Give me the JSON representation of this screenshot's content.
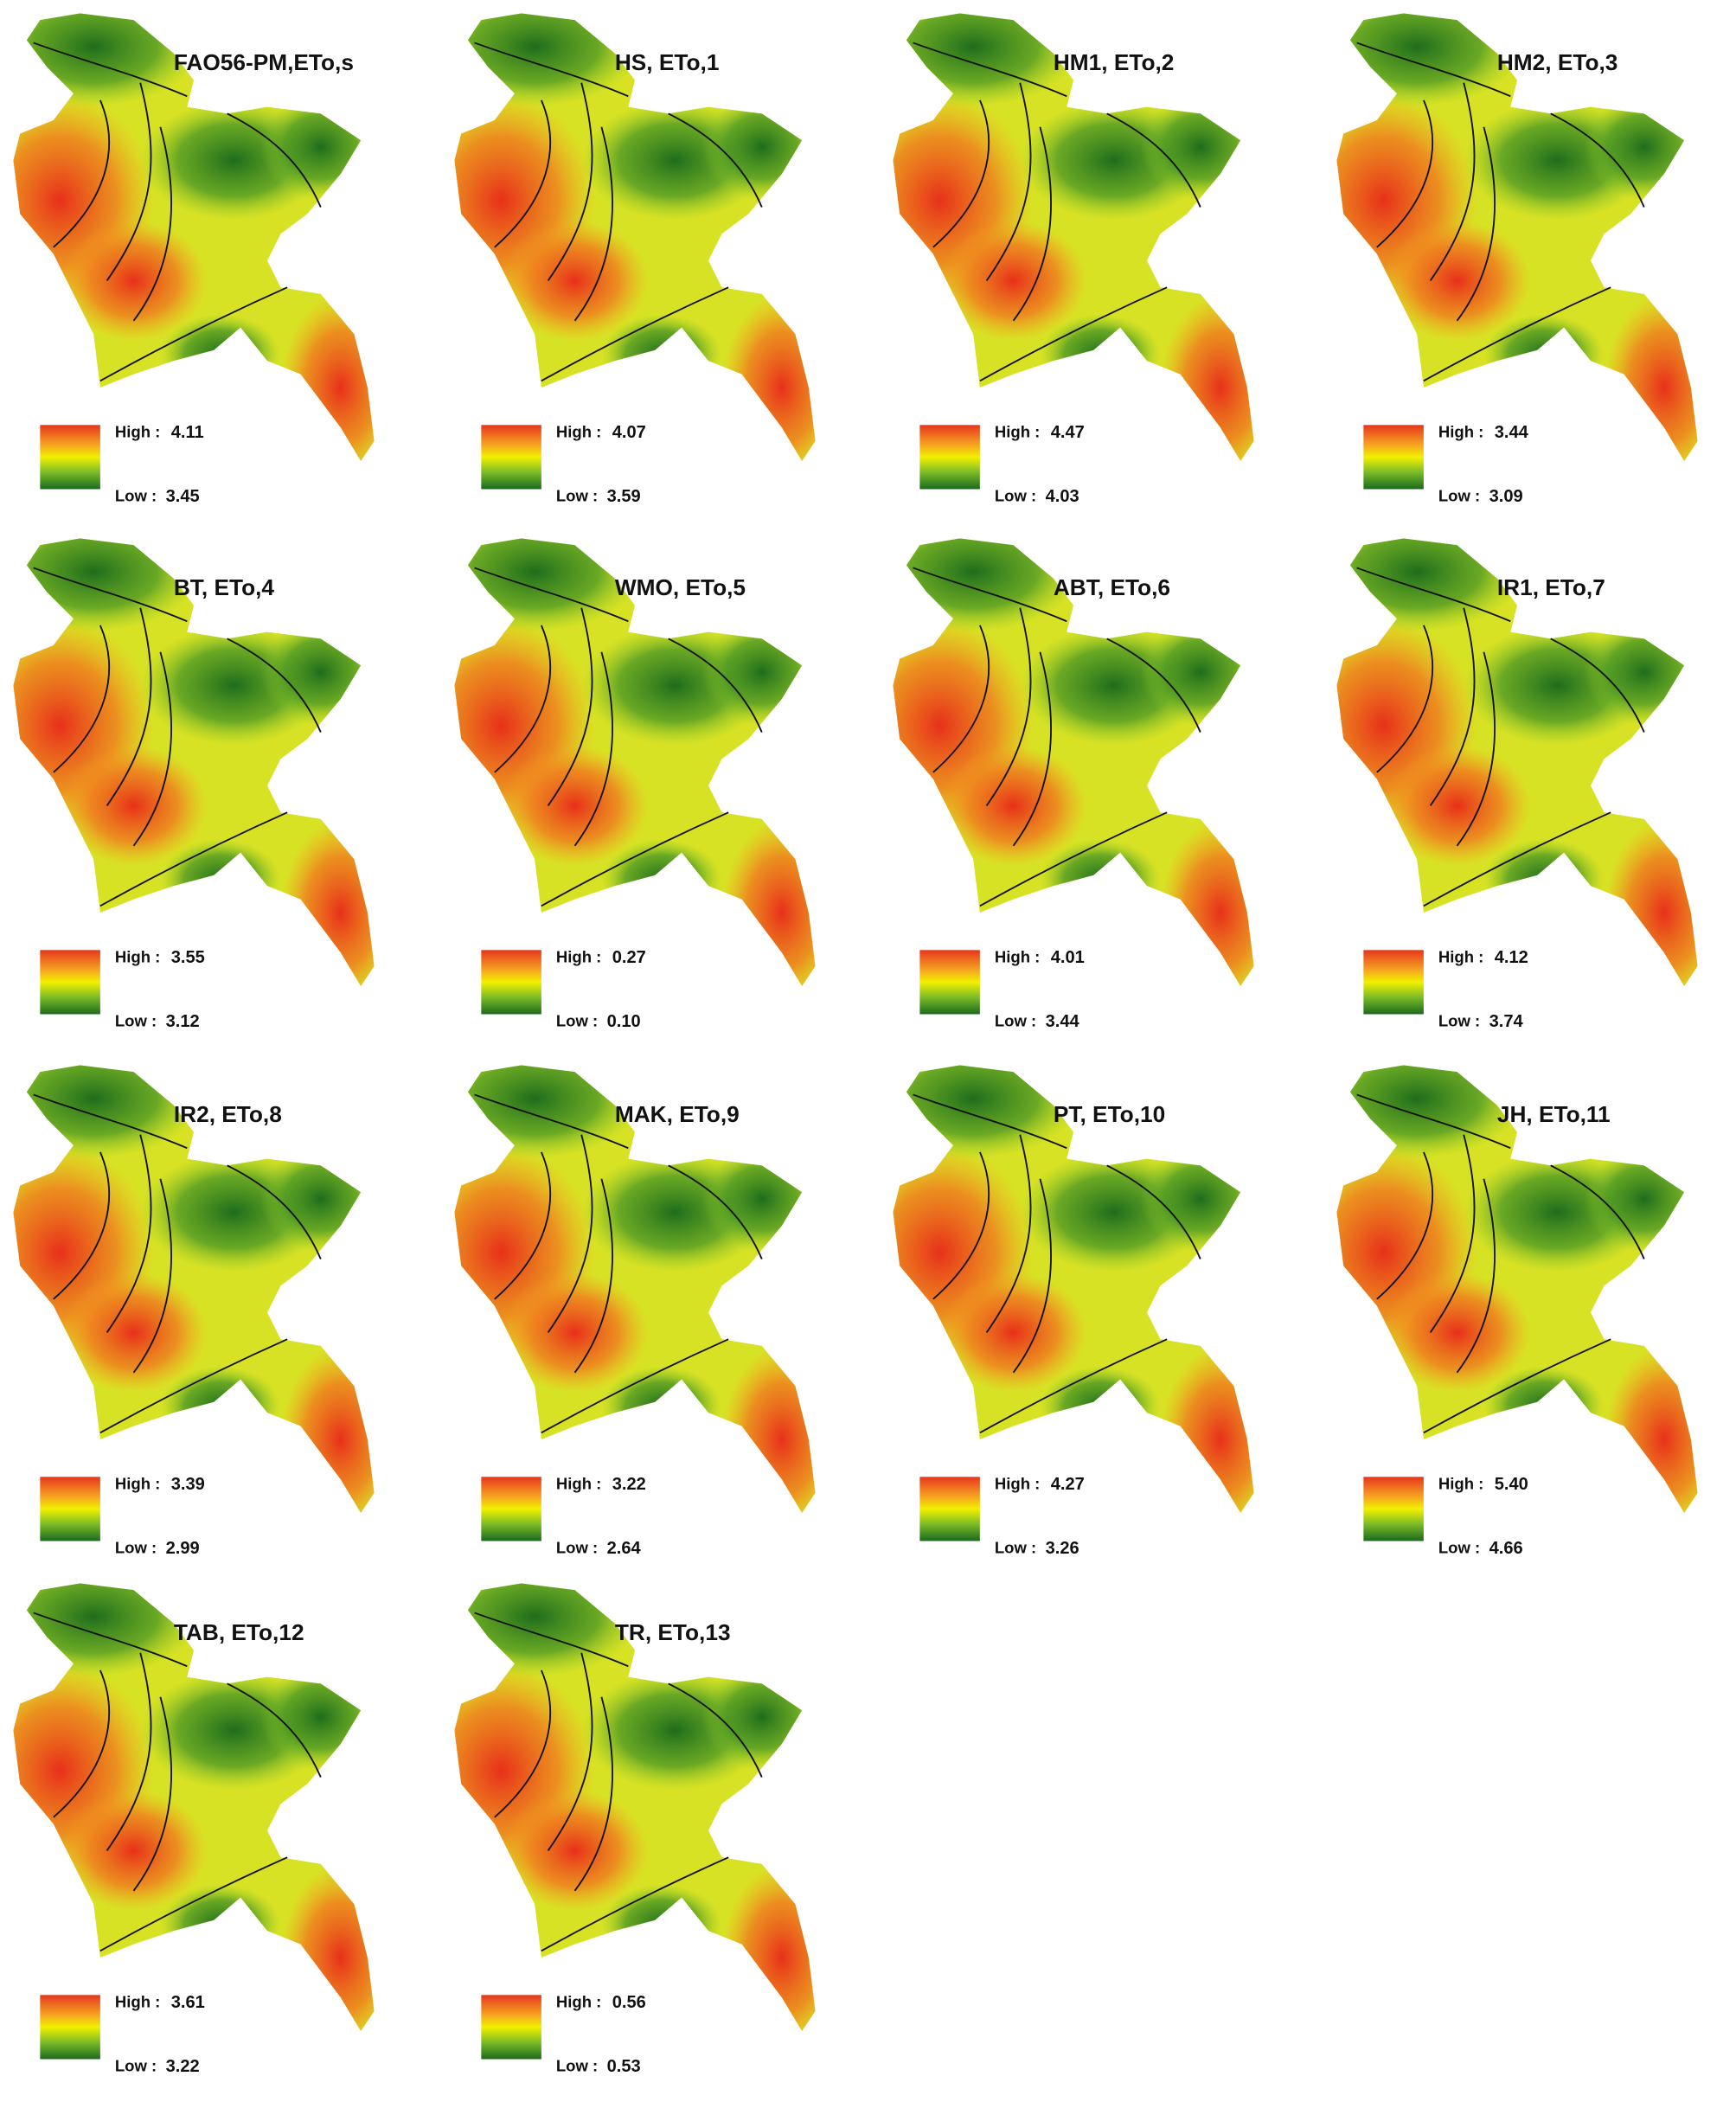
{
  "maps": [
    {
      "title": "FAO56-PM,ETo,s",
      "high_label": "High :",
      "high": "4.11",
      "low_label": "Low :",
      "low": "3.45"
    },
    {
      "title": "HS, ETo,1",
      "high_label": "High :",
      "high": "4.07",
      "low_label": "Low :",
      "low": "3.59"
    },
    {
      "title": "HM1, ETo,2",
      "high_label": "High :",
      "high": "4.47",
      "low_label": "Low :",
      "low": "4.03"
    },
    {
      "title": "HM2, ETo,3",
      "high_label": "High :",
      "high": "3.44",
      "low_label": "Low :",
      "low": "3.09"
    },
    {
      "title": "BT, ETo,4",
      "high_label": "High :",
      "high": "3.55",
      "low_label": "Low :",
      "low": "3.12"
    },
    {
      "title": "WMO, ETo,5",
      "high_label": "High :",
      "high": "0.27",
      "low_label": "Low :",
      "low": "0.10"
    },
    {
      "title": "ABT, ETo,6",
      "high_label": "High :",
      "high": "4.01",
      "low_label": "Low :",
      "low": "3.44"
    },
    {
      "title": "IR1, ETo,7",
      "high_label": "High :",
      "high": "4.12",
      "low_label": "Low :",
      "low": "3.74"
    },
    {
      "title": "IR2, ETo,8",
      "high_label": "High :",
      "high": "3.39",
      "low_label": "Low :",
      "low": "2.99"
    },
    {
      "title": "MAK, ETo,9",
      "high_label": "High :",
      "high": "3.22",
      "low_label": "Low :",
      "low": "2.64"
    },
    {
      "title": "PT, ETo,10",
      "high_label": "High :",
      "high": "4.27",
      "low_label": "Low :",
      "low": "3.26"
    },
    {
      "title": "JH, ETo,11",
      "high_label": "High :",
      "high": "5.40",
      "low_label": "Low :",
      "low": "4.66"
    },
    {
      "title": "TAB, ETo,12",
      "high_label": "High :",
      "high": "3.61",
      "low_label": "Low :",
      "low": "3.22"
    },
    {
      "title": "TR, ETo,13",
      "high_label": "High :",
      "high": "0.56",
      "low_label": "Low :",
      "low": "0.53"
    }
  ]
}
